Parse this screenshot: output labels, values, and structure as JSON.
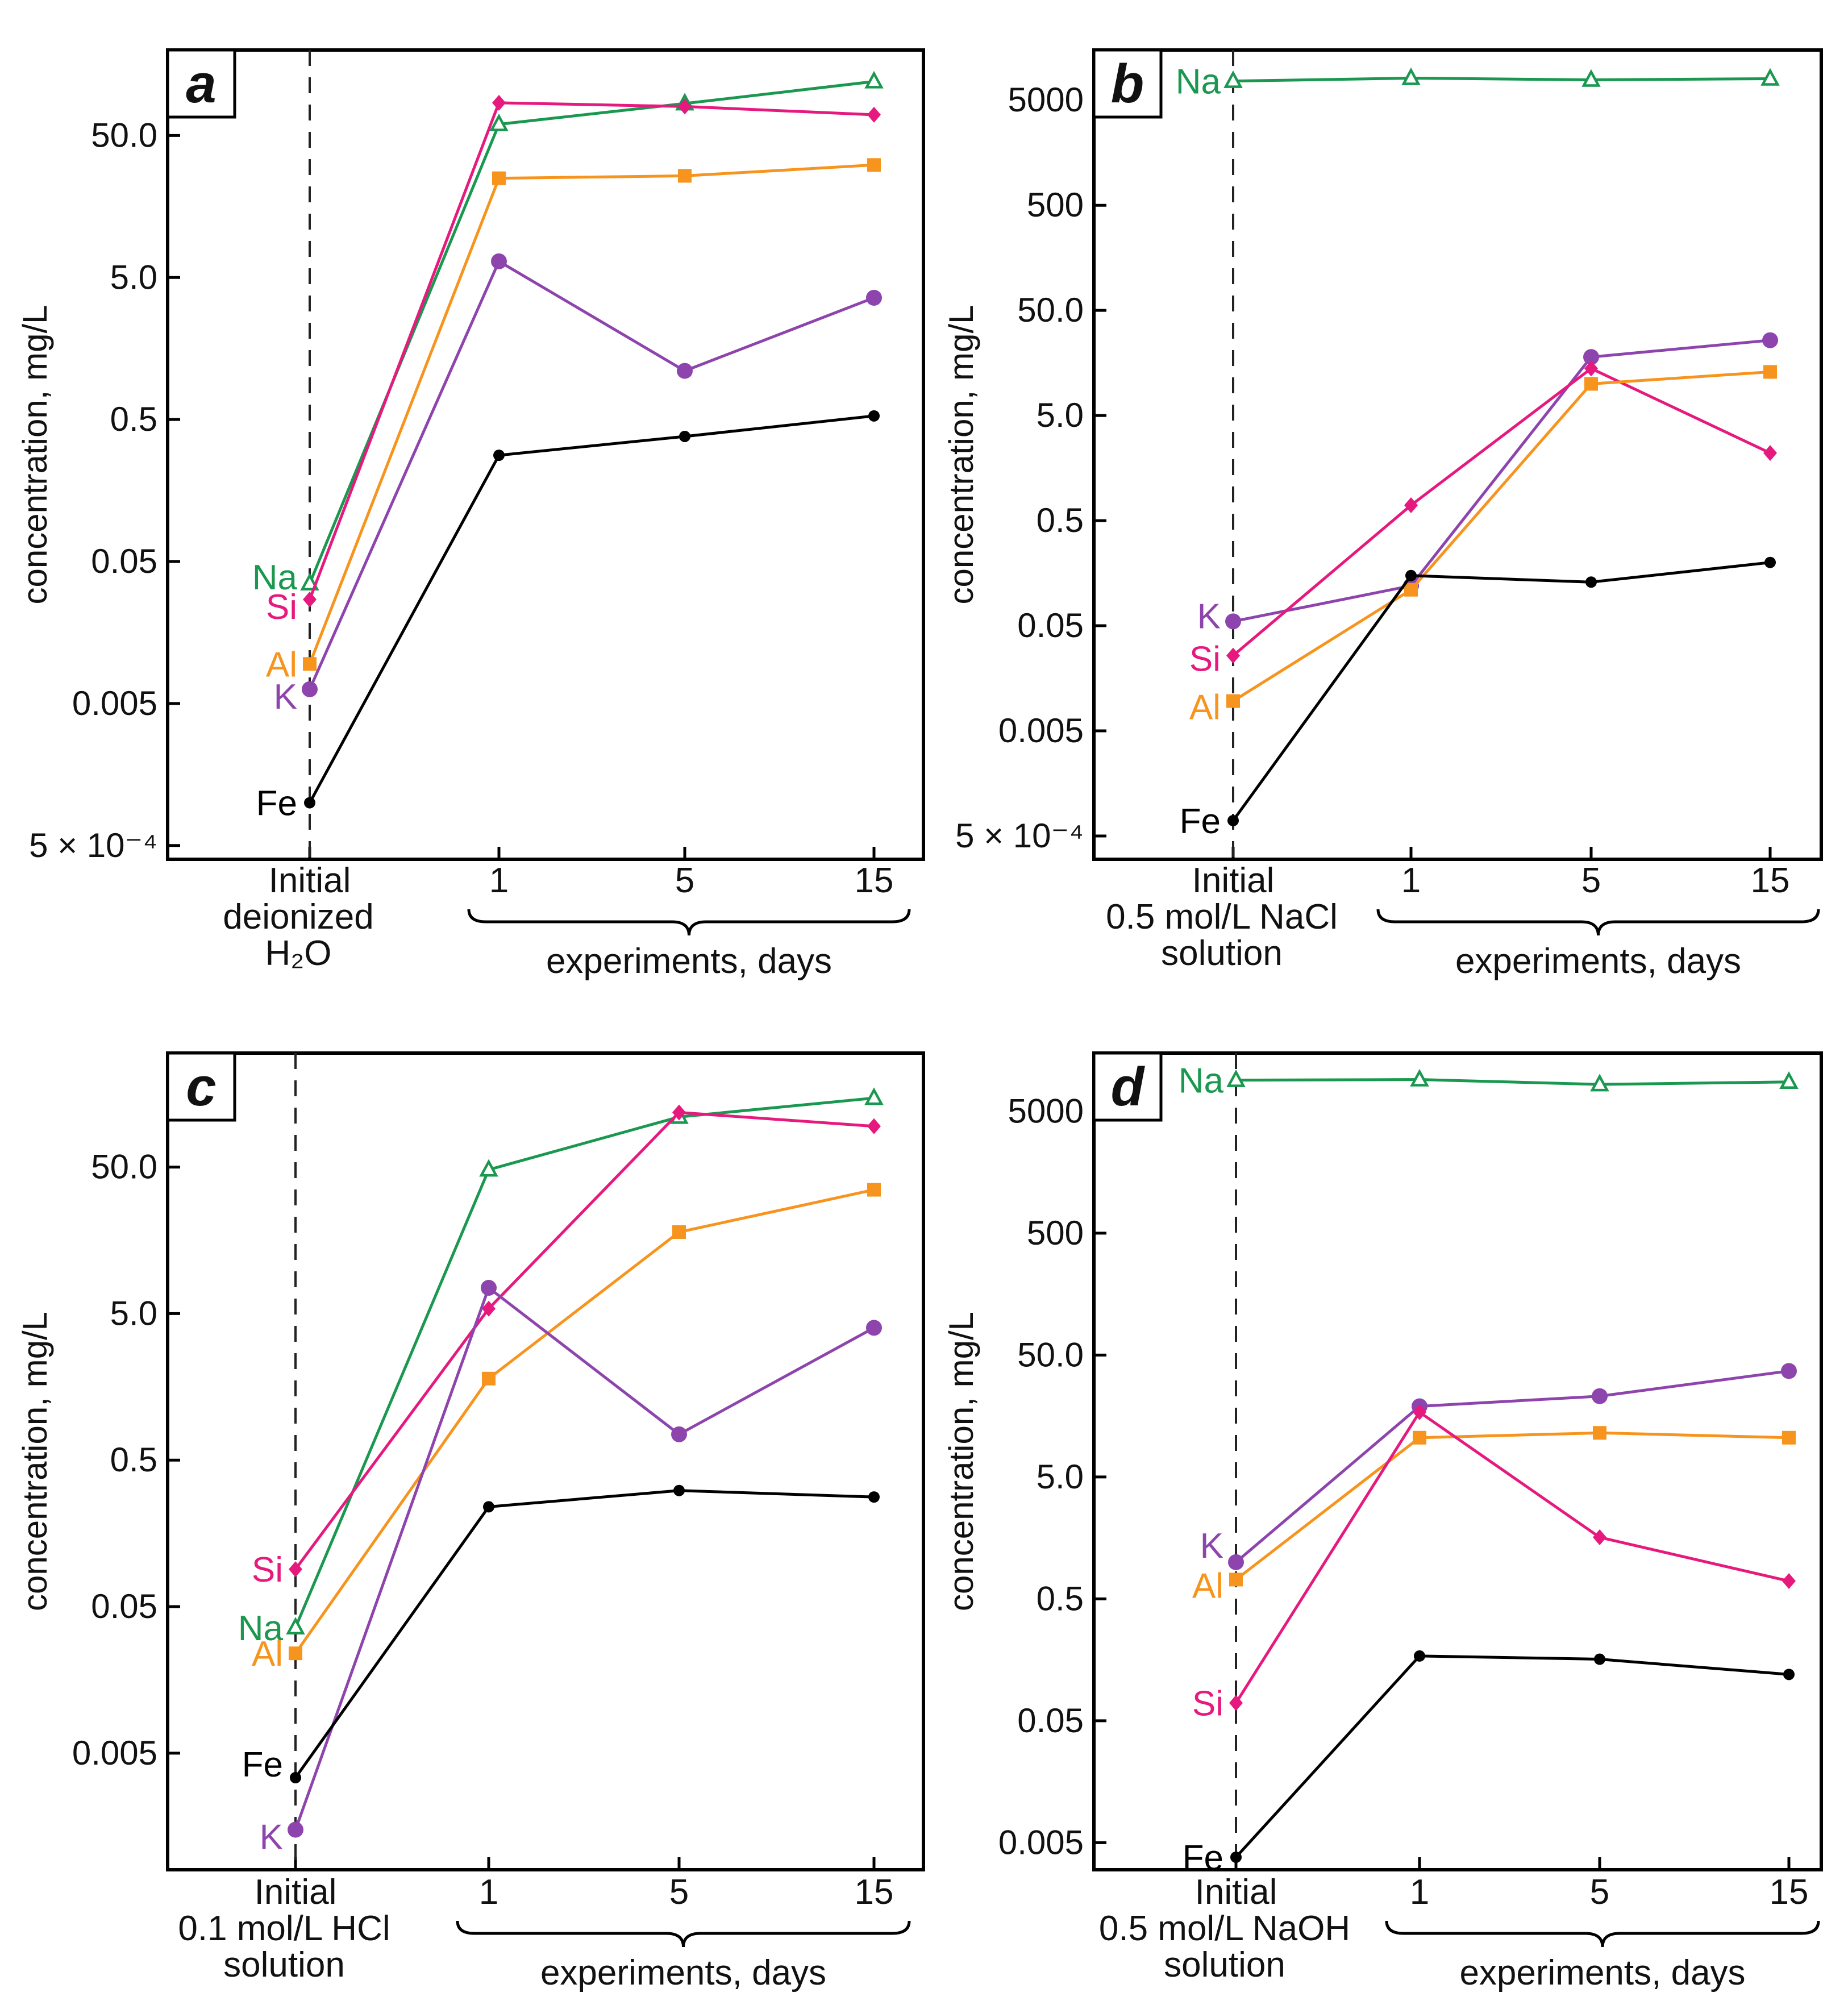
{
  "chart_data": [
    {
      "type": "line",
      "panel": "a",
      "ylabel": "concentration, mg/L",
      "yscale": "log",
      "ylim": [
        0.0004,
        200
      ],
      "yticks": [
        0.0005,
        0.005,
        0.05,
        0.5,
        5.0,
        50.0
      ],
      "ytick_labels": [
        "5 × 10⁻⁴",
        "0.005",
        "0.05",
        "0.5",
        "5.0",
        "50.0"
      ],
      "categories": [
        "Initial",
        "1",
        "5",
        "15"
      ],
      "initial_label": [
        "deionized",
        "H₂O"
      ],
      "days_label": "experiments, days",
      "series": [
        {
          "name": "Na",
          "color": "#1a9850",
          "marker": "triangle-open",
          "values": [
            0.035,
            60,
            84,
            120
          ]
        },
        {
          "name": "Si",
          "color": "#e6197e",
          "marker": "diamond",
          "values": [
            0.027,
            85,
            80,
            70
          ]
        },
        {
          "name": "Al",
          "color": "#f7941d",
          "marker": "square",
          "values": [
            0.0095,
            25,
            26,
            31
          ]
        },
        {
          "name": "K",
          "color": "#8e44ad",
          "marker": "circle",
          "values": [
            0.0063,
            6.5,
            1.1,
            3.6
          ]
        },
        {
          "name": "Fe",
          "color": "#000000",
          "marker": "dot",
          "values": [
            0.001,
            0.28,
            0.38,
            0.53
          ]
        }
      ]
    },
    {
      "type": "line",
      "panel": "b",
      "ylabel": "concentration, mg/L",
      "yscale": "log",
      "ylim": [
        0.0003,
        15000
      ],
      "yticks": [
        0.0005,
        0.005,
        0.05,
        0.5,
        5.0,
        50.0,
        500,
        5000
      ],
      "ytick_labels": [
        "5 × 10⁻⁴",
        "0.005",
        "0.05",
        "0.5",
        "5.0",
        "50.0",
        "500",
        "5000"
      ],
      "categories": [
        "Initial",
        "1",
        "5",
        "15"
      ],
      "initial_label": [
        "0.5 mol/L NaCl",
        "solution"
      ],
      "days_label": "experiments, days",
      "series": [
        {
          "name": "Na",
          "color": "#1a9850",
          "marker": "triangle-open",
          "values": [
            7600,
            8100,
            7800,
            8000
          ]
        },
        {
          "name": "K",
          "color": "#8e44ad",
          "marker": "circle",
          "values": [
            0.055,
            0.12,
            18,
            26
          ]
        },
        {
          "name": "Si",
          "color": "#e6197e",
          "marker": "diamond",
          "values": [
            0.026,
            0.7,
            14,
            2.2
          ]
        },
        {
          "name": "Al",
          "color": "#f7941d",
          "marker": "square",
          "values": [
            0.0096,
            0.11,
            10,
            13
          ]
        },
        {
          "name": "Fe",
          "color": "#000000",
          "marker": "dot",
          "values": [
            0.0007,
            0.15,
            0.13,
            0.2
          ]
        }
      ]
    },
    {
      "type": "line",
      "panel": "c",
      "ylabel": "concentration, mg/L",
      "yscale": "log",
      "ylim": [
        0.0008,
        300
      ],
      "yticks": [
        0.005,
        0.05,
        0.5,
        5.0,
        50.0
      ],
      "ytick_labels": [
        "0.005",
        "0.05",
        "0.5",
        "5.0",
        "50.0"
      ],
      "categories": [
        "Initial",
        "1",
        "5",
        "15"
      ],
      "initial_label": [
        "0.1 mol/L HCl",
        "solution"
      ],
      "days_label": "experiments, days",
      "series": [
        {
          "name": "Na",
          "color": "#1a9850",
          "marker": "triangle-open",
          "values": [
            0.036,
            48,
            110,
            148
          ]
        },
        {
          "name": "Si",
          "color": "#e6197e",
          "marker": "diamond",
          "values": [
            0.09,
            5.4,
            118,
            95
          ]
        },
        {
          "name": "Al",
          "color": "#f7941d",
          "marker": "square",
          "values": [
            0.024,
            1.8,
            18,
            35
          ]
        },
        {
          "name": "K",
          "color": "#8e44ad",
          "marker": "circle",
          "values": [
            0.0015,
            7.5,
            0.75,
            4.0
          ]
        },
        {
          "name": "Fe",
          "color": "#000000",
          "marker": "dot",
          "values": [
            0.0034,
            0.24,
            0.31,
            0.28
          ]
        }
      ]
    },
    {
      "type": "line",
      "panel": "d",
      "ylabel": "concentration, mg/L",
      "yscale": "log",
      "ylim": [
        0.003,
        15000
      ],
      "yticks": [
        0.005,
        0.05,
        0.5,
        5.0,
        50.0,
        500,
        5000
      ],
      "ytick_labels": [
        "0.005",
        "0.05",
        "0.5",
        "5.0",
        "50.0",
        "500",
        "5000"
      ],
      "categories": [
        "Initial",
        "1",
        "5",
        "15"
      ],
      "initial_label": [
        "0.5 mol/L NaOH",
        "solution"
      ],
      "days_label": "experiments, days",
      "series": [
        {
          "name": "Na",
          "color": "#1a9850",
          "marker": "triangle-open",
          "values": [
            9000,
            9100,
            8300,
            8700
          ]
        },
        {
          "name": "K",
          "color": "#8e44ad",
          "marker": "circle",
          "values": [
            1.0,
            19,
            23,
            37
          ]
        },
        {
          "name": "Al",
          "color": "#f7941d",
          "marker": "square",
          "values": [
            0.72,
            10.5,
            11.5,
            10.5
          ]
        },
        {
          "name": "Si",
          "color": "#e6197e",
          "marker": "diamond",
          "values": [
            0.07,
            17,
            1.6,
            0.7
          ]
        },
        {
          "name": "Fe",
          "color": "#000000",
          "marker": "dot",
          "values": [
            0.0038,
            0.17,
            0.16,
            0.12
          ]
        }
      ]
    }
  ]
}
